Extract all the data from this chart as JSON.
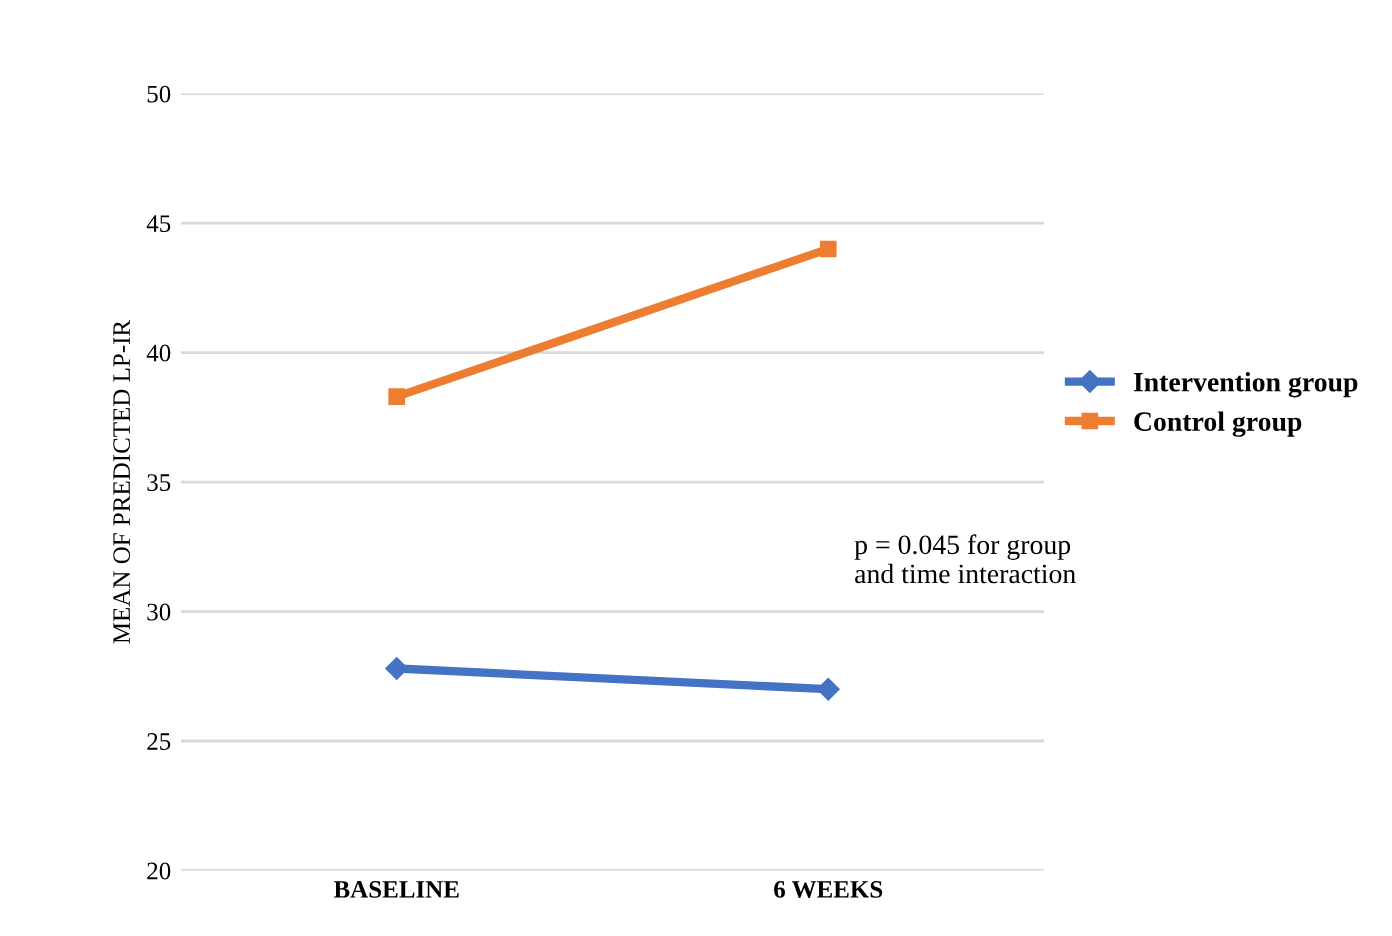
{
  "chart_data": {
    "type": "line",
    "ylabel": "MEAN OF PREDICTED LP-IR",
    "categories": [
      "BASELINE",
      "6 WEEKS"
    ],
    "series": [
      {
        "name": "Intervention group",
        "color": "#4472c4",
        "values": [
          27.8,
          27.0
        ],
        "marker": "diamond"
      },
      {
        "name": "Control group",
        "color": "#ed7d31",
        "values": [
          38.3,
          44.0
        ],
        "marker": "square"
      }
    ],
    "ylim": [
      20,
      50
    ],
    "yticks": [
      20,
      25,
      30,
      35,
      40,
      45,
      50
    ],
    "grid": "y",
    "legend": "right",
    "annotations": [
      "p = 0.045 for group\nand time interaction"
    ]
  }
}
